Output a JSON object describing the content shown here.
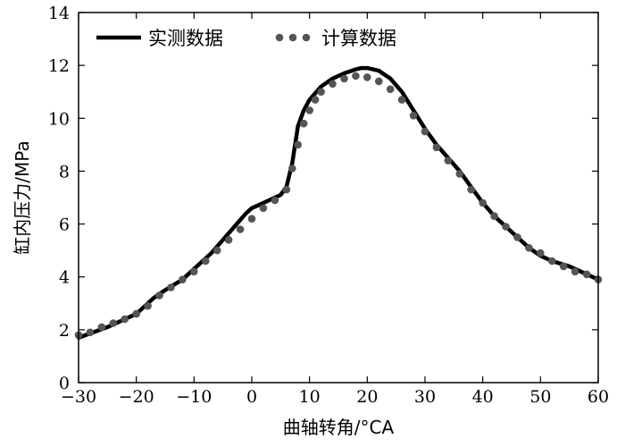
{
  "chart_data": {
    "type": "line",
    "xlabel": "曲轴转角/°CA",
    "ylabel": "缸内压力/MPa",
    "xlim": [
      -30,
      60
    ],
    "ylim": [
      0,
      14
    ],
    "x_ticks": [
      -30,
      -20,
      -10,
      0,
      10,
      20,
      30,
      40,
      50,
      60
    ],
    "y_ticks": [
      0,
      2,
      4,
      6,
      8,
      10,
      12,
      14
    ],
    "x_tick_labels": [
      "−30",
      "−20",
      "−10",
      "0",
      "10",
      "20",
      "30",
      "40",
      "50",
      "60"
    ],
    "y_tick_labels": [
      "0",
      "2",
      "4",
      "6",
      "8",
      "10",
      "12",
      "14"
    ],
    "grid": false,
    "legend_position": "top-left",
    "series": [
      {
        "name": "实测数据",
        "style": "solid",
        "color": "#000000",
        "x": [
          -30,
          -25,
          -20,
          -17,
          -15,
          -12,
          -10,
          -7,
          -5,
          -3,
          -1,
          0,
          1,
          3,
          5,
          6,
          7,
          8,
          9,
          10,
          12,
          14,
          16,
          18,
          19,
          20,
          22,
          24,
          26,
          28,
          30,
          32,
          34,
          36,
          38,
          40,
          42,
          45,
          48,
          50,
          52,
          55,
          58,
          60
        ],
        "y": [
          1.7,
          2.1,
          2.6,
          3.2,
          3.5,
          3.9,
          4.3,
          4.9,
          5.4,
          5.9,
          6.4,
          6.6,
          6.7,
          6.9,
          7.1,
          7.4,
          8.3,
          9.7,
          10.3,
          10.7,
          11.2,
          11.5,
          11.7,
          11.85,
          11.9,
          11.9,
          11.8,
          11.5,
          11.0,
          10.3,
          9.6,
          9.0,
          8.5,
          8.0,
          7.4,
          6.8,
          6.3,
          5.7,
          5.1,
          4.8,
          4.6,
          4.4,
          4.1,
          3.9
        ]
      },
      {
        "name": "计算数据",
        "style": "dotted",
        "color": "#555555",
        "x": [
          -30,
          -28,
          -26,
          -24,
          -22,
          -20,
          -18,
          -16,
          -14,
          -12,
          -10,
          -8,
          -6,
          -4,
          -2,
          0,
          2,
          4,
          6,
          7,
          8,
          9,
          10,
          11,
          12,
          14,
          16,
          18,
          20,
          22,
          24,
          26,
          28,
          30,
          32,
          34,
          36,
          38,
          40,
          42,
          44,
          46,
          48,
          50,
          52,
          54,
          56,
          58,
          60
        ],
        "y": [
          1.8,
          1.9,
          2.1,
          2.25,
          2.4,
          2.6,
          2.9,
          3.3,
          3.6,
          3.9,
          4.2,
          4.6,
          5.0,
          5.4,
          5.8,
          6.2,
          6.6,
          6.9,
          7.3,
          8.1,
          9.0,
          9.8,
          10.3,
          10.7,
          11.0,
          11.3,
          11.5,
          11.6,
          11.55,
          11.4,
          11.1,
          10.7,
          10.1,
          9.5,
          8.9,
          8.4,
          7.9,
          7.3,
          6.8,
          6.3,
          5.9,
          5.5,
          5.1,
          4.9,
          4.6,
          4.4,
          4.2,
          4.1,
          3.9
        ]
      }
    ]
  }
}
